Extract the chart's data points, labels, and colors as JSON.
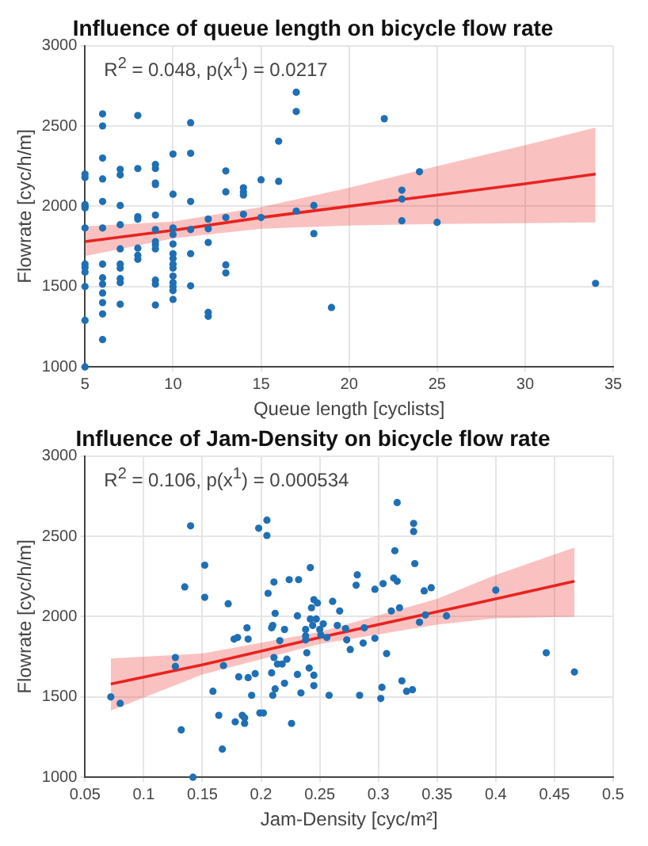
{
  "chart_data": [
    {
      "type": "scatter",
      "title": "Influence of queue length on bicycle flow rate",
      "xlabel": "Queue length [cyclists]",
      "ylabel": "Flowrate [cyc/h/m]",
      "annotations": [
        "R$^{2}$ = 0.048,  p(x$^{1}$) = 0.0217"
      ],
      "xlim": [
        5,
        35
      ],
      "xticks": [
        5,
        10,
        15,
        20,
        25,
        30,
        35
      ],
      "ylim": [
        1000,
        3000
      ],
      "yticks": [
        1000,
        1500,
        2000,
        2500,
        3000
      ],
      "grid": true,
      "series": [
        {
          "type": "scatter",
          "marker": "circle",
          "color": "#1f6fb4",
          "x": [
            5,
            5,
            5,
            5,
            5,
            5,
            5,
            5,
            5,
            5,
            5,
            5,
            6,
            6,
            6,
            6,
            6,
            6,
            6,
            6,
            6,
            6,
            6,
            6,
            6,
            7,
            7,
            7,
            7,
            7,
            7,
            7,
            7,
            7,
            7,
            8,
            8,
            8,
            8,
            8,
            8,
            8,
            9,
            9,
            9,
            9,
            9,
            9,
            9,
            9,
            9,
            9,
            9,
            9,
            10,
            10,
            10,
            10,
            10,
            10,
            10,
            10,
            10,
            10,
            10,
            10,
            10,
            10,
            11,
            11,
            11,
            11,
            11,
            11,
            12,
            12,
            12,
            12,
            12,
            13,
            13,
            13,
            13,
            13,
            14,
            14,
            14,
            14,
            15,
            15,
            16,
            16,
            17,
            17,
            17,
            18,
            18,
            19,
            22,
            23,
            23,
            23,
            24,
            25,
            34
          ],
          "values": [
            1000,
            1290,
            1500,
            1590,
            1620,
            1640,
            1865,
            1990,
            2000,
            2010,
            2180,
            2200,
            2575,
            2500,
            2300,
            2170,
            2030,
            1865,
            1640,
            1555,
            1515,
            1460,
            1400,
            1330,
            1170,
            2230,
            2195,
            2005,
            1885,
            1735,
            1640,
            1615,
            1550,
            1525,
            1390,
            2565,
            2235,
            1935,
            1920,
            1740,
            1695,
            1670,
            2260,
            2235,
            2145,
            2135,
            1945,
            1855,
            1780,
            1760,
            1735,
            1540,
            1515,
            1385,
            2325,
            2075,
            1865,
            1825,
            1765,
            1705,
            1675,
            1640,
            1615,
            1565,
            1525,
            1500,
            1475,
            1420,
            2520,
            2330,
            2030,
            1855,
            1705,
            1505,
            1920,
            1860,
            1775,
            1340,
            1315,
            2220,
            2090,
            1930,
            1635,
            1585,
            2115,
            2090,
            2070,
            1950,
            2165,
            1930,
            2405,
            2155,
            2710,
            2590,
            1970,
            2005,
            1830,
            1370,
            2545,
            2100,
            2045,
            1910,
            2215,
            1900,
            1520
          ]
        },
        {
          "type": "line",
          "marker": "none",
          "color": "#e8231f",
          "x": [
            5,
            10,
            15,
            20,
            25,
            30,
            34
          ],
          "values": [
            1780,
            1850,
            1930,
            2000,
            2070,
            2140,
            2200
          ],
          "lower": [
            1690,
            1800,
            1860,
            1880,
            1890,
            1895,
            1900
          ],
          "upper": [
            1875,
            1905,
            1995,
            2115,
            2250,
            2380,
            2490
          ]
        }
      ]
    },
    {
      "type": "scatter",
      "title": "Influence of Jam-Density on bicycle flow rate",
      "xlabel": "Jam-Density [cyc/m²]",
      "ylabel": "Flowrate [cyc/h/m]",
      "annotations": [
        "R$^{2}$ = 0.106,  p(x$^{1}$) = 0.000534"
      ],
      "xlim": [
        0.05,
        0.5
      ],
      "xticks": [
        0.05,
        0.1,
        0.15,
        0.2,
        0.25,
        0.3,
        0.35,
        0.4,
        0.45,
        0.5
      ],
      "ylim": [
        1000,
        3000
      ],
      "yticks": [
        1000,
        1500,
        2000,
        2500,
        3000
      ],
      "grid": true,
      "series": [
        {
          "type": "scatter",
          "marker": "circle",
          "color": "#1f6fb4",
          "x": [
            0.072,
            0.08,
            0.127,
            0.127,
            0.132,
            0.135,
            0.14,
            0.142,
            0.152,
            0.152,
            0.159,
            0.164,
            0.167,
            0.168,
            0.172,
            0.177,
            0.18,
            0.181,
            0.178,
            0.184,
            0.186,
            0.186,
            0.188,
            0.189,
            0.189,
            0.192,
            0.195,
            0.198,
            0.199,
            0.202,
            0.205,
            0.205,
            0.206,
            0.209,
            0.21,
            0.21,
            0.209,
            0.211,
            0.211,
            0.212,
            0.212,
            0.214,
            0.216,
            0.218,
            0.22,
            0.22,
            0.222,
            0.224,
            0.226,
            0.232,
            0.231,
            0.231,
            0.234,
            0.238,
            0.238,
            0.238,
            0.239,
            0.241,
            0.242,
            0.243,
            0.242,
            0.244,
            0.245,
            0.245,
            0.248,
            0.247,
            0.245,
            0.25,
            0.251,
            0.253,
            0.256,
            0.258,
            0.261,
            0.265,
            0.267,
            0.272,
            0.273,
            0.276,
            0.281,
            0.282,
            0.284,
            0.288,
            0.287,
            0.297,
            0.297,
            0.302,
            0.304,
            0.303,
            0.307,
            0.311,
            0.314,
            0.313,
            0.316,
            0.316,
            0.318,
            0.32,
            0.324,
            0.329,
            0.33,
            0.33,
            0.331,
            0.335,
            0.339,
            0.34,
            0.345,
            0.358,
            0.4,
            0.443,
            0.467
          ],
          "values": [
            1500,
            1460,
            1745,
            1690,
            1295,
            2185,
            2565,
            1000,
            2320,
            2120,
            1535,
            1385,
            1175,
            1695,
            2080,
            1860,
            1870,
            1625,
            1345,
            1385,
            1370,
            1335,
            1930,
            1860,
            1620,
            1510,
            1645,
            2550,
            1400,
            1400,
            2600,
            2505,
            2145,
            1930,
            1945,
            1510,
            1650,
            2215,
            1745,
            2020,
            1550,
            1705,
            1850,
            1705,
            1920,
            1585,
            1735,
            2230,
            1335,
            2230,
            2005,
            1640,
            1525,
            1880,
            1855,
            1920,
            1775,
            1680,
            2305,
            2055,
            1985,
            1945,
            1635,
            2105,
            2085,
            1985,
            1570,
            1920,
            1885,
            1955,
            1870,
            1510,
            2095,
            1945,
            2035,
            1925,
            1855,
            1795,
            2195,
            2260,
            1510,
            1930,
            1835,
            2170,
            1865,
            1490,
            2205,
            1560,
            1770,
            2035,
            2410,
            2240,
            2220,
            2710,
            2055,
            1600,
            1535,
            1545,
            2580,
            2530,
            2330,
            1965,
            2160,
            2010,
            2180,
            2005,
            2165,
            1775,
            1655
          ]
        },
        {
          "type": "line",
          "marker": "none",
          "color": "#e8231f",
          "x": [
            0.072,
            0.15,
            0.25,
            0.35,
            0.4,
            0.467
          ],
          "values": [
            1580,
            1700,
            1870,
            2030,
            2110,
            2220
          ],
          "lower": [
            1415,
            1640,
            1830,
            1950,
            1990,
            2000
          ],
          "upper": [
            1740,
            1770,
            1905,
            2110,
            2260,
            2430
          ]
        }
      ]
    }
  ]
}
